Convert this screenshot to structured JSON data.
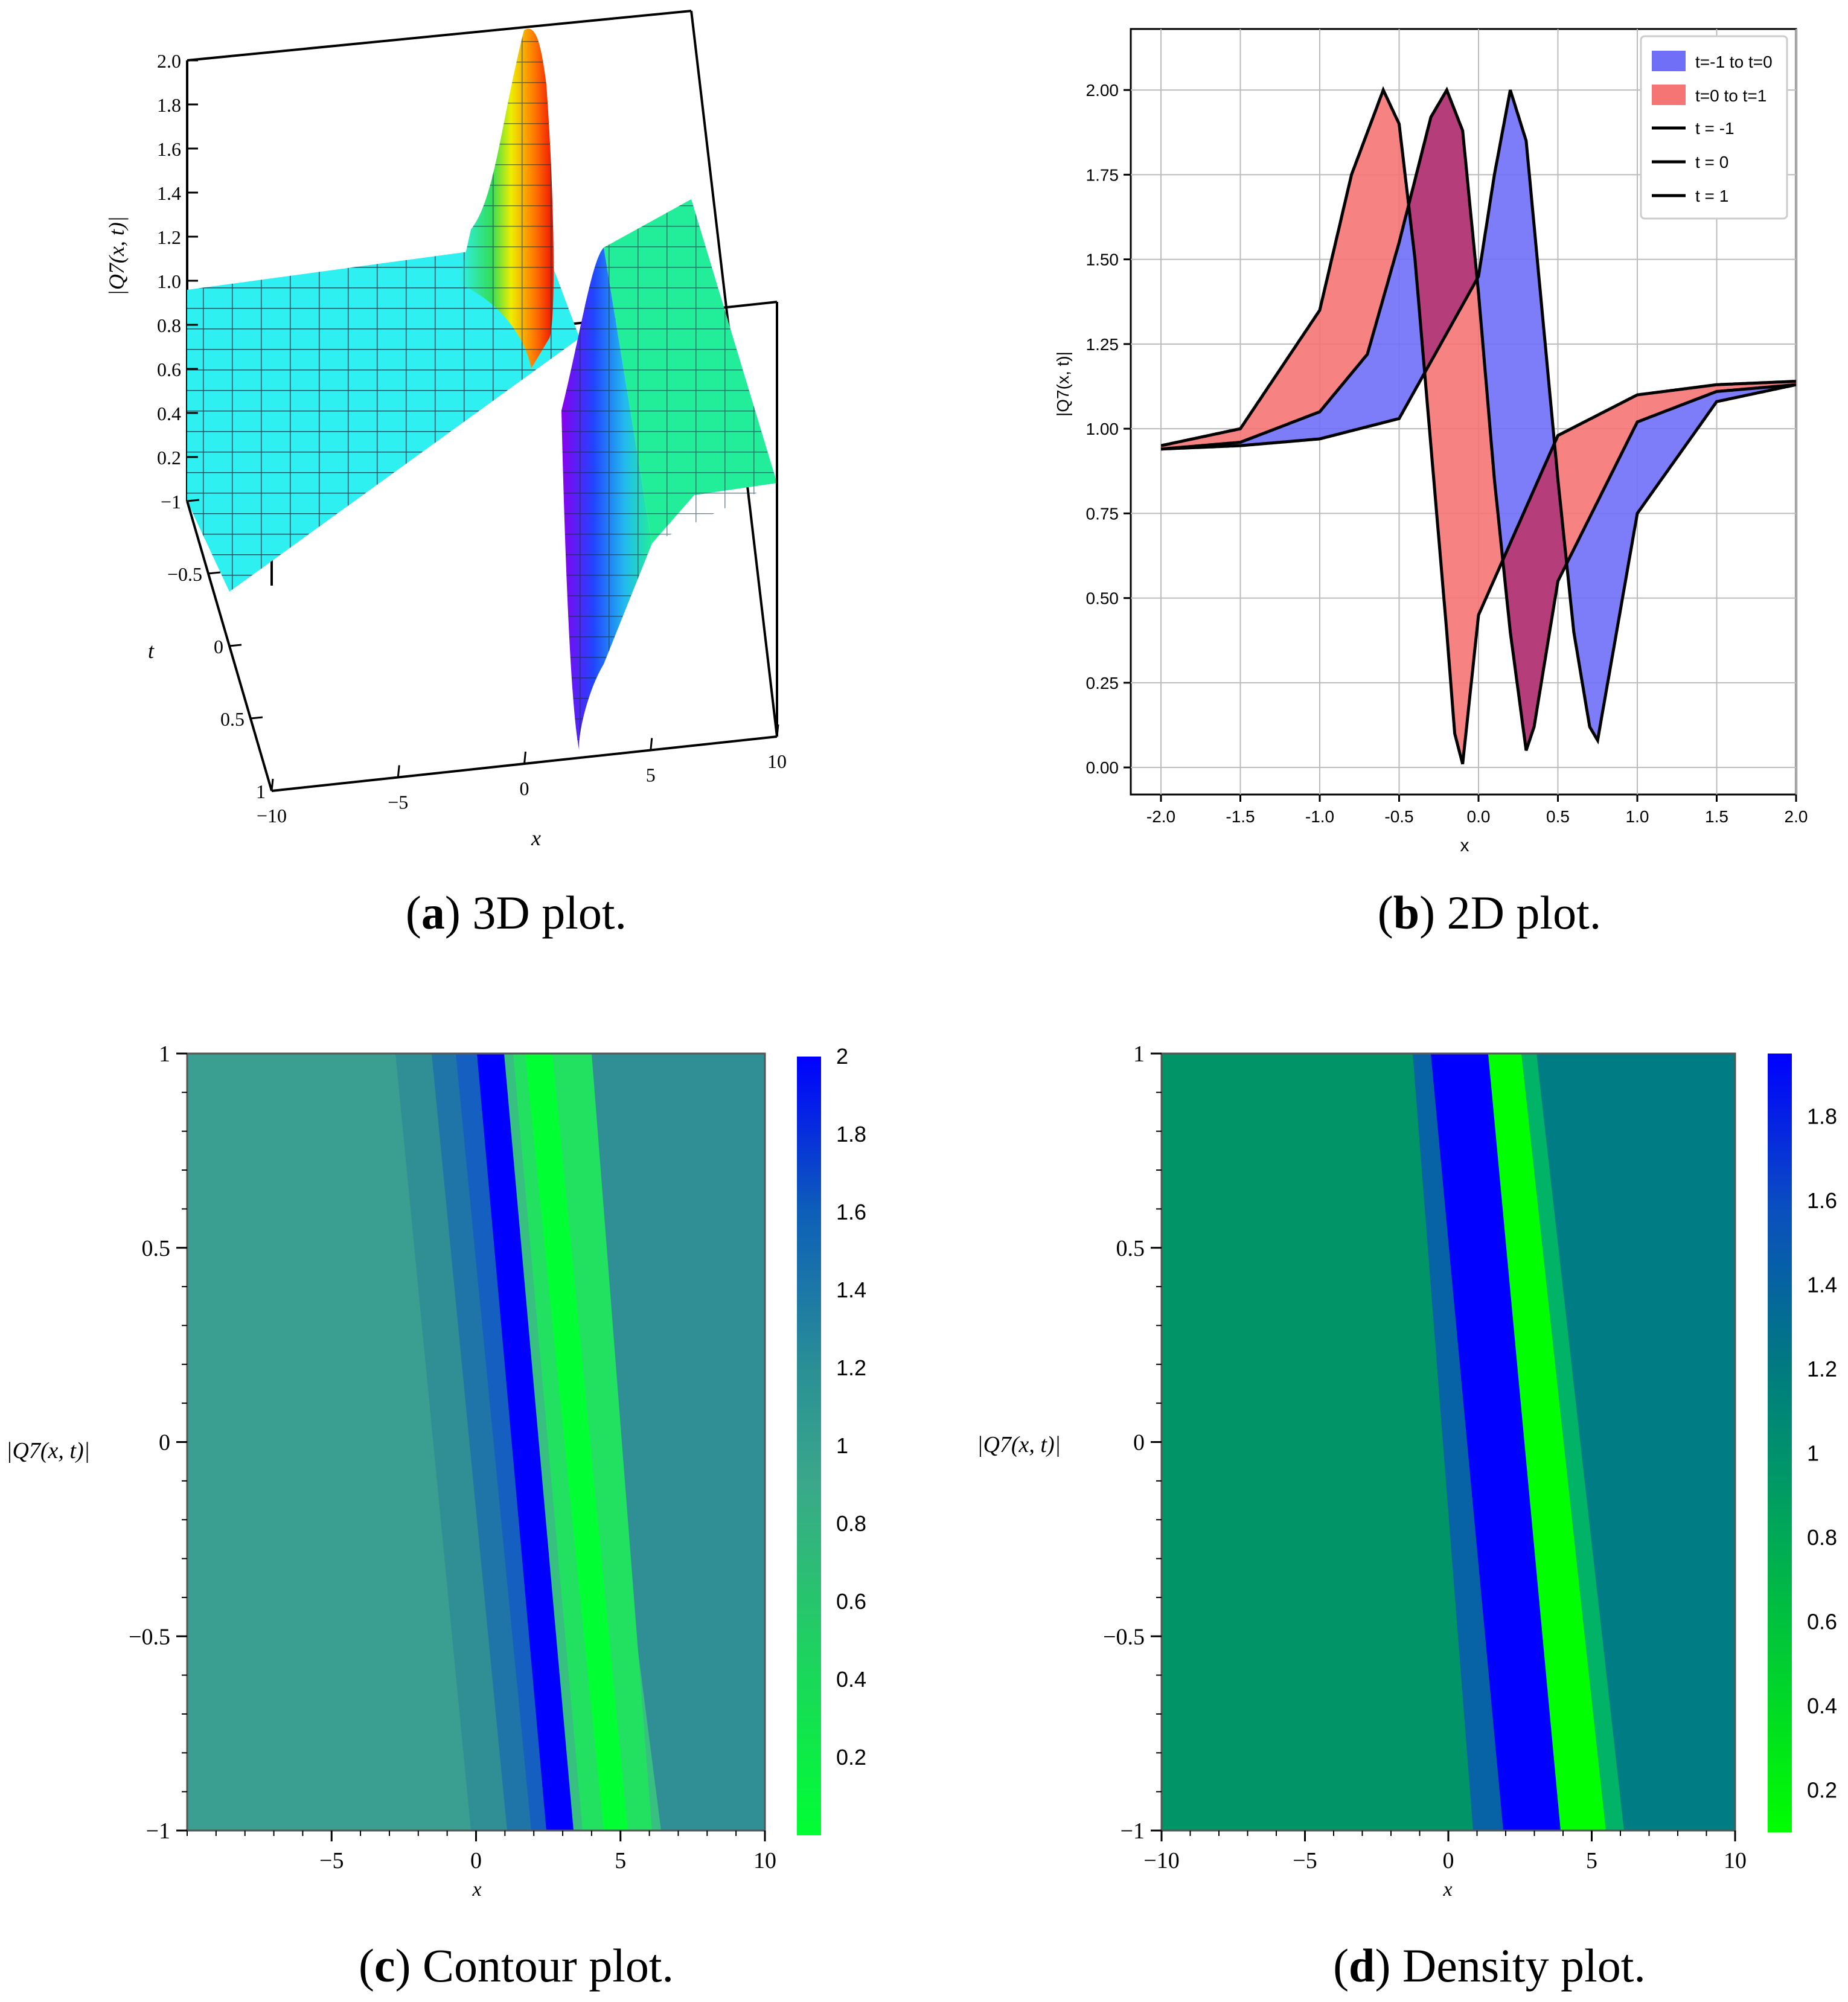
{
  "chart_data": [
    {
      "id": "a",
      "type": "surface3d",
      "caption_letter": "a",
      "caption_text": "3D plot.",
      "xlabel": "x",
      "ylabel": "t",
      "zlabel": "|Q7(x, t)|",
      "x_ticks": [
        "−10",
        "−5",
        "0",
        "5",
        "10"
      ],
      "t_ticks": [
        "−1",
        "−0.5",
        "0",
        "0.5",
        "1"
      ],
      "z_ticks": [
        "0.2",
        "0.4",
        "0.6",
        "0.8",
        "1.0",
        "1.2",
        "1.4",
        "1.6",
        "1.8",
        "2.0"
      ],
      "xlim": [
        -10,
        10
      ],
      "tlim": [
        -1,
        1
      ],
      "zlim": [
        0,
        2
      ],
      "colors": {
        "left_plateau": "#2ff0f0",
        "right_plateau": "#22ee99",
        "peak": "#ee1100",
        "trough": "#8800ee"
      }
    },
    {
      "id": "b",
      "type": "area",
      "caption_letter": "b",
      "caption_text": "2D plot.",
      "xlabel": "x",
      "ylabel": "|Q7(x, t)|",
      "xlim": [
        -2,
        2
      ],
      "ylim": [
        -0.08,
        2.1
      ],
      "x_ticks": [
        "-2.0",
        "-1.5",
        "-1.0",
        "-0.5",
        "0.0",
        "0.5",
        "1.0",
        "1.5",
        "2.0"
      ],
      "y_ticks": [
        "0.00",
        "0.25",
        "0.50",
        "0.75",
        "1.00",
        "1.25",
        "1.50",
        "1.75",
        "2.00"
      ],
      "grid": true,
      "legend": [
        "t=-1 to t=0",
        "t=0 to t=1",
        "t = -1",
        "t = 0",
        "t = 1"
      ],
      "legend_position": "top-right",
      "series": [
        {
          "name": "t = -1",
          "x": [
            -2.0,
            -1.5,
            -1.0,
            -0.5,
            0.0,
            0.1,
            0.2,
            0.3,
            0.4,
            0.5,
            0.6,
            0.7,
            0.75,
            1.0,
            1.5,
            2.0
          ],
          "values": [
            0.94,
            0.95,
            0.97,
            1.03,
            1.45,
            1.75,
            2.0,
            1.85,
            1.35,
            0.85,
            0.4,
            0.12,
            0.08,
            0.75,
            1.08,
            1.13
          ]
        },
        {
          "name": "t = 0",
          "x": [
            -2.0,
            -1.5,
            -1.0,
            -0.7,
            -0.5,
            -0.3,
            -0.2,
            -0.1,
            0.0,
            0.1,
            0.2,
            0.3,
            0.35,
            0.5,
            1.0,
            1.5,
            2.0
          ],
          "values": [
            0.94,
            0.96,
            1.05,
            1.22,
            1.55,
            1.92,
            2.0,
            1.88,
            1.4,
            0.85,
            0.4,
            0.05,
            0.12,
            0.55,
            1.02,
            1.11,
            1.13
          ]
        },
        {
          "name": "t = 1",
          "x": [
            -2.0,
            -1.5,
            -1.0,
            -0.8,
            -0.6,
            -0.5,
            -0.4,
            -0.3,
            -0.2,
            -0.15,
            -0.1,
            0.0,
            0.5,
            1.0,
            1.5,
            2.0
          ],
          "values": [
            0.95,
            1.0,
            1.35,
            1.75,
            2.0,
            1.9,
            1.5,
            0.95,
            0.4,
            0.1,
            0.01,
            0.45,
            0.98,
            1.1,
            1.13,
            1.14
          ]
        }
      ],
      "colors": {
        "blue_fill": "#6f6ff8",
        "red_fill": "#f57474",
        "overlap_fill": "#b23a78"
      }
    },
    {
      "id": "c",
      "type": "contour",
      "caption_letter": "c",
      "caption_text": "Contour plot.",
      "xlabel": "x",
      "ylabel": "|Q7(x, t)|",
      "xlim": [
        -10,
        10
      ],
      "ylim": [
        -1,
        1
      ],
      "x_ticks": [
        "−5",
        "0",
        "5",
        "10"
      ],
      "y_ticks": [
        "−1",
        "−0.5",
        "0",
        "0.5",
        "1"
      ],
      "colorbar_ticks": [
        "0.2",
        "0.4",
        "0.6",
        "0.8",
        "1",
        "1.2",
        "1.4",
        "1.6",
        "1.8",
        "2"
      ],
      "colorbar_range": [
        0,
        2
      ],
      "colors": {
        "low": "#00ff33",
        "mid": "#2f9a8a",
        "high": "#0000ff"
      }
    },
    {
      "id": "d",
      "type": "heatmap",
      "caption_letter": "d",
      "caption_text": "Density plot.",
      "xlabel": "x",
      "ylabel": "|Q7(x, t)|",
      "xlim": [
        -10,
        10
      ],
      "ylim": [
        -1,
        1
      ],
      "x_ticks": [
        "−10",
        "−5",
        "0",
        "5",
        "10"
      ],
      "y_ticks": [
        "−1",
        "−0.5",
        "0",
        "0.5",
        "1"
      ],
      "colorbar_ticks": [
        "0.2",
        "0.4",
        "0.6",
        "0.8",
        "1",
        "1.2",
        "1.4",
        "1.6",
        "1.8"
      ],
      "colorbar_range": [
        0.1,
        1.95
      ],
      "colors": {
        "low": "#00ff00",
        "mid": "#009966",
        "high": "#0000ff"
      }
    }
  ]
}
